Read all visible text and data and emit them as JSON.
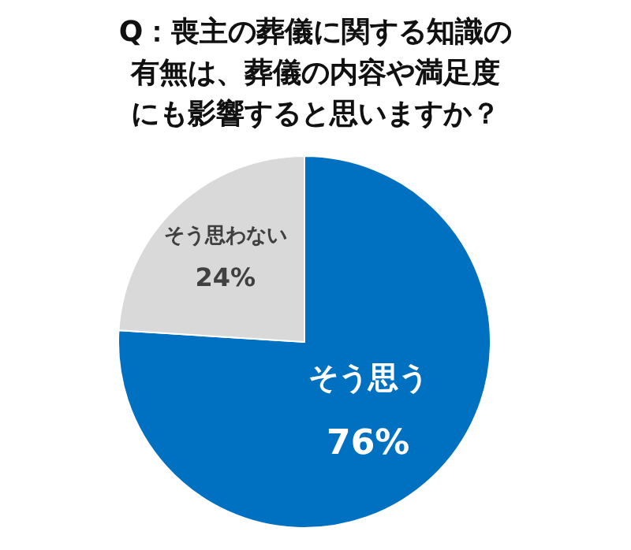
{
  "chart_data": {
    "type": "pie",
    "title": "Q：喪主の葬儀に関する知識の有無は、葬儀の内容や満足度にも影響すると思いますか？",
    "categories": [
      "そう思う",
      "そう思わない"
    ],
    "values": [
      76,
      24
    ],
    "value_labels": [
      "76%",
      "24%"
    ],
    "colors": [
      "#0070c0",
      "#d9d9d9"
    ],
    "legend": false
  }
}
